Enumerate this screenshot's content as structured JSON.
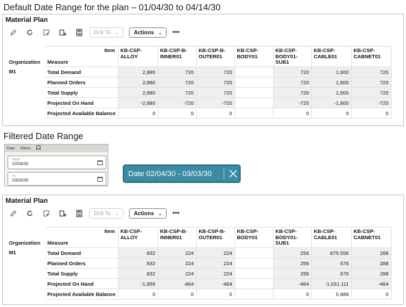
{
  "top_caption": "Default Date Range for the plan – 01/04/30 to 04/14/30",
  "middle_caption": "Filtered Date Range",
  "toolbar": {
    "icons": [
      "edit-icon",
      "refresh-icon",
      "note-icon",
      "add-to-list-icon",
      "calculator-icon"
    ],
    "drill_to": "Drill To",
    "actions": "Actions",
    "more": "•••"
  },
  "panel1": {
    "title": "Material Plan",
    "item_header": "Item",
    "organization_header": "Organization",
    "measure_header": "Measure",
    "organization": "M1",
    "columns": [
      [
        "KB-CSP-",
        "ALLOY"
      ],
      [
        "KB-CSP-B-",
        "INNER01"
      ],
      [
        "KB-CSP-B-",
        "OUTER01"
      ],
      [
        "KB-CSP-",
        "BODY01"
      ],
      [
        "KB-CSP-",
        "BODY01-",
        "SUB1"
      ],
      [
        "KB-CSP-",
        "CABLE01"
      ],
      [
        "KB-CSP-",
        "CABNET01"
      ]
    ],
    "rows": [
      {
        "measure": "Total Demand",
        "values": [
          "2,880",
          "720",
          "720",
          "",
          "720",
          "1,600",
          "720"
        ]
      },
      {
        "measure": "Planned Orders",
        "values": [
          "2,880",
          "720",
          "720",
          "",
          "720",
          "1,600",
          "720"
        ]
      },
      {
        "measure": "Total Supply",
        "values": [
          "2,880",
          "720",
          "720",
          "",
          "720",
          "1,600",
          "720"
        ]
      },
      {
        "measure": "Projected On Hand",
        "values": [
          "-2,880",
          "-720",
          "-720",
          "",
          "-720",
          "-1,600",
          "-720"
        ]
      },
      {
        "measure": "Projected Available Balance",
        "values": [
          "0",
          "0",
          "0",
          "",
          "0",
          "0",
          "0"
        ]
      }
    ]
  },
  "filter": {
    "tabs": [
      "Date",
      "Filters"
    ],
    "from_label": "From",
    "from_value": "02/04/30",
    "to_label": "To",
    "to_value": "03/03/30"
  },
  "date_chip": {
    "text": "Date 02/04/30 - 03/03/30"
  },
  "panel2": {
    "title": "Material Plan",
    "item_header": "Item",
    "organization_header": "Organization",
    "measure_header": "Measure",
    "organization": "M1",
    "columns": [
      [
        "KB-CSP-",
        "ALLOY"
      ],
      [
        "KB-CSP-B-",
        "INNER01"
      ],
      [
        "KB-CSP-B-",
        "OUTER01"
      ],
      [
        "KB-CSP-",
        "BODY01"
      ],
      [
        "KB-CSP-",
        "BODY01-",
        "SUB1"
      ],
      [
        "KB-CSP-",
        "CABLE01"
      ],
      [
        "KB-CSP-",
        "CABNET01"
      ]
    ],
    "rows": [
      {
        "measure": "Total Demand",
        "values": [
          "832",
          "224",
          "224",
          "",
          "256",
          "675.556",
          "288"
        ]
      },
      {
        "measure": "Planned Orders",
        "values": [
          "832",
          "224",
          "224",
          "",
          "256",
          "676",
          "288"
        ]
      },
      {
        "measure": "Total Supply",
        "values": [
          "832",
          "224",
          "224",
          "",
          "256",
          "676",
          "288"
        ]
      },
      {
        "measure": "Projected On Hand",
        "values": [
          "-1,856",
          "-464",
          "-464",
          "",
          "-464",
          "-1,031.111",
          "-464"
        ]
      },
      {
        "measure": "Projected Available Balance",
        "values": [
          "0",
          "0",
          "0",
          "",
          "0",
          "0.889",
          "0"
        ]
      }
    ]
  },
  "colors": {
    "chip_background": "#3b8ba3",
    "chip_border": "#2a6f86",
    "cell_shade": "#f1efed"
  }
}
